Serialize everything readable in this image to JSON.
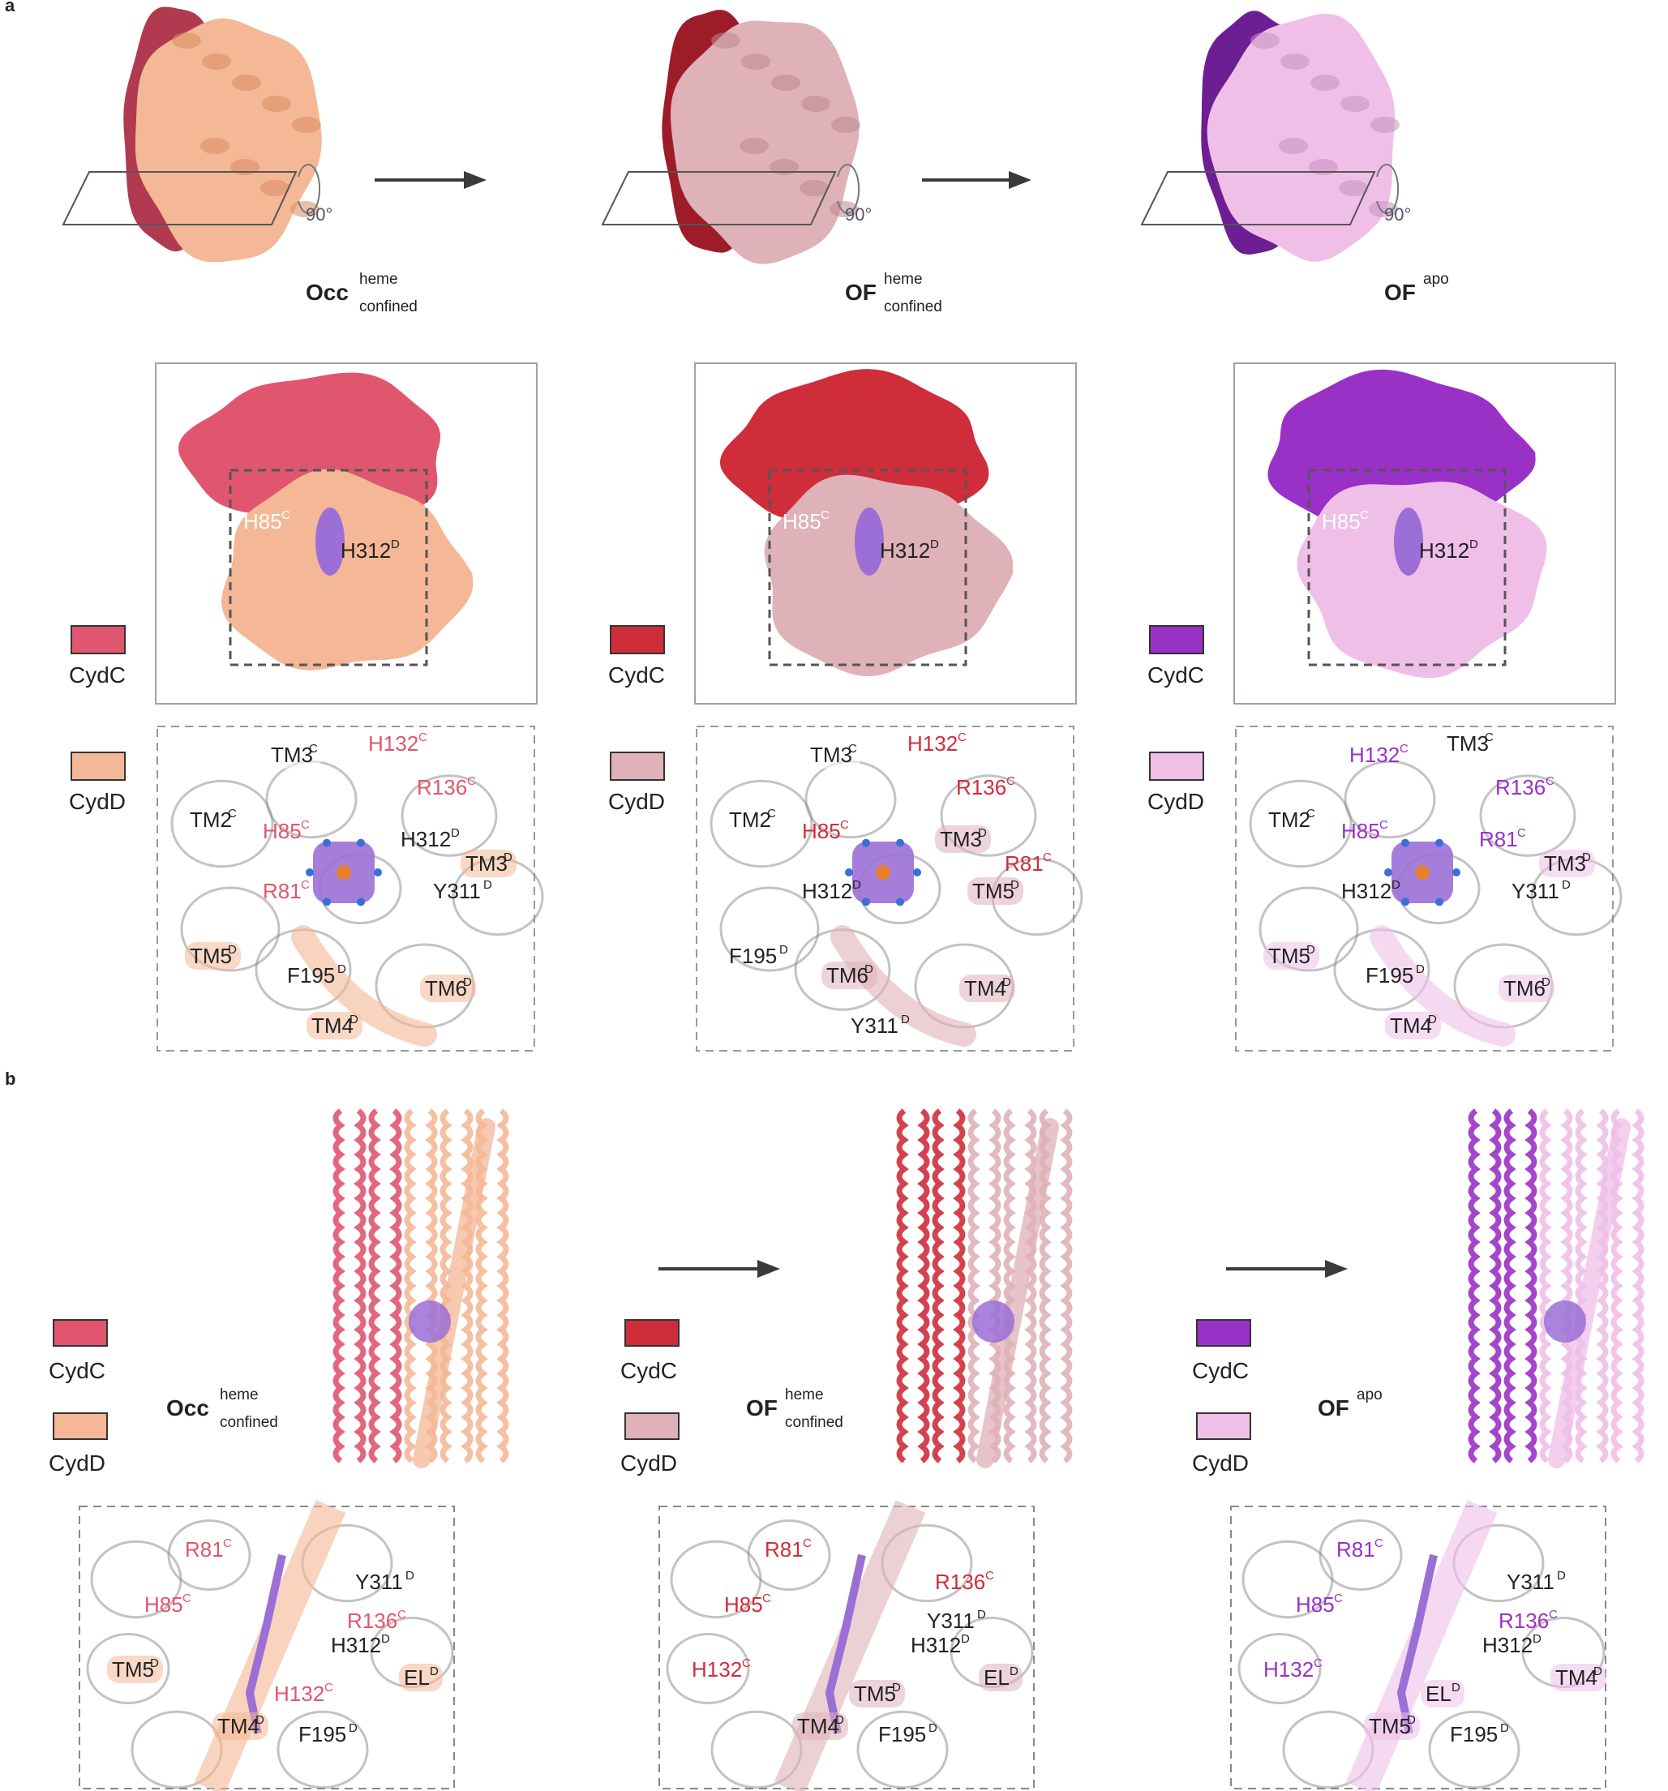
{
  "panel_a": {
    "label": "a",
    "rotation": "90°",
    "columns": [
      {
        "state_main": "Occ",
        "state_sup": "heme",
        "state_sub": "confined",
        "c_color": "#e0566e",
        "d_color": "#f4b896",
        "dark_c": "#b23a50",
        "dark_d": "#d98a62",
        "legend_c": "CydC",
        "legend_d": "CydD",
        "zoom_res_a": "H85",
        "zoom_sup_a": "C",
        "zoom_res_b": "H312",
        "zoom_sup_b": "D",
        "labels": [
          {
            "t": "TM3",
            "s": "C"
          },
          {
            "t": "H132",
            "s": "C"
          },
          {
            "t": "R136",
            "s": "C"
          },
          {
            "t": "TM2",
            "s": "C"
          },
          {
            "t": "H85",
            "s": "C"
          },
          {
            "t": "H312",
            "s": "D"
          },
          {
            "t": "TM3",
            "s": "D"
          },
          {
            "t": "R81",
            "s": "C"
          },
          {
            "t": "Y311",
            "s": "D"
          },
          {
            "t": "TM5",
            "s": "D"
          },
          {
            "t": "F195",
            "s": "D"
          },
          {
            "t": "TM6",
            "s": "D"
          },
          {
            "t": "TM4",
            "s": "D"
          }
        ]
      },
      {
        "state_main": "OF",
        "state_sup": "heme",
        "state_sub": "confined",
        "c_color": "#cf2d3a",
        "d_color": "#dfb1b8",
        "dark_c": "#9e1c28",
        "dark_d": "#b88890",
        "legend_c": "CydC",
        "legend_d": "CydD",
        "zoom_res_a": "H85",
        "zoom_sup_a": "C",
        "zoom_res_b": "H312",
        "zoom_sup_b": "D",
        "labels": [
          {
            "t": "TM3",
            "s": "C"
          },
          {
            "t": "H132",
            "s": "C"
          },
          {
            "t": "R136",
            "s": "C"
          },
          {
            "t": "TM2",
            "s": "C"
          },
          {
            "t": "H85",
            "s": "C"
          },
          {
            "t": "TM3",
            "s": "D"
          },
          {
            "t": "R81",
            "s": "C"
          },
          {
            "t": "H312",
            "s": "D"
          },
          {
            "t": "TM5",
            "s": "D"
          },
          {
            "t": "F195",
            "s": "D"
          },
          {
            "t": "TM6",
            "s": "D"
          },
          {
            "t": "TM4",
            "s": "D"
          },
          {
            "t": "Y311",
            "s": "D"
          }
        ]
      },
      {
        "state_main": "OF",
        "state_sup": "apo",
        "state_sub": "",
        "c_color": "#9a31c7",
        "d_color": "#efbfe8",
        "dark_c": "#6e1e93",
        "dark_d": "#c790c0",
        "legend_c": "CydC",
        "legend_d": "CydD",
        "zoom_res_a": "H85",
        "zoom_sup_a": "C",
        "zoom_res_b": "H312",
        "zoom_sup_b": "D",
        "labels": [
          {
            "t": "H132",
            "s": "C"
          },
          {
            "t": "TM3",
            "s": "C"
          },
          {
            "t": "R136",
            "s": "C"
          },
          {
            "t": "TM2",
            "s": "C"
          },
          {
            "t": "H85",
            "s": "C"
          },
          {
            "t": "R81",
            "s": "C"
          },
          {
            "t": "TM3",
            "s": "D"
          },
          {
            "t": "H312",
            "s": "D"
          },
          {
            "t": "Y311",
            "s": "D"
          },
          {
            "t": "TM5",
            "s": "D"
          },
          {
            "t": "F195",
            "s": "D"
          },
          {
            "t": "TM6",
            "s": "D"
          },
          {
            "t": "TM4",
            "s": "D"
          }
        ]
      }
    ]
  },
  "panel_b": {
    "label": "b",
    "columns": [
      {
        "state_main": "Occ",
        "state_sup": "heme",
        "state_sub": "confined",
        "legend_c": "CydC",
        "legend_d": "CydD",
        "labels": [
          {
            "t": "R81",
            "s": "C"
          },
          {
            "t": "Y311",
            "s": "D"
          },
          {
            "t": "H85",
            "s": "C"
          },
          {
            "t": "R136",
            "s": "C"
          },
          {
            "t": "H312",
            "s": "D"
          },
          {
            "t": "TM5",
            "s": "D"
          },
          {
            "t": "EL",
            "s": "D"
          },
          {
            "t": "H132",
            "s": "C"
          },
          {
            "t": "TM4",
            "s": "D"
          },
          {
            "t": "F195",
            "s": "D"
          }
        ]
      },
      {
        "state_main": "OF",
        "state_sup": "heme",
        "state_sub": "confined",
        "legend_c": "CydC",
        "legend_d": "CydD",
        "labels": [
          {
            "t": "R81",
            "s": "C"
          },
          {
            "t": "R136",
            "s": "C"
          },
          {
            "t": "H85",
            "s": "C"
          },
          {
            "t": "Y311",
            "s": "D"
          },
          {
            "t": "H312",
            "s": "D"
          },
          {
            "t": "H132",
            "s": "C"
          },
          {
            "t": "EL",
            "s": "D"
          },
          {
            "t": "TM5",
            "s": "D"
          },
          {
            "t": "TM4",
            "s": "D"
          },
          {
            "t": "F195",
            "s": "D"
          }
        ]
      },
      {
        "state_main": "OF",
        "state_sup": "apo",
        "state_sub": "",
        "legend_c": "CydC",
        "legend_d": "CydD",
        "labels": [
          {
            "t": "R81",
            "s": "C"
          },
          {
            "t": "Y311",
            "s": "D"
          },
          {
            "t": "H85",
            "s": "C"
          },
          {
            "t": "R136",
            "s": "C"
          },
          {
            "t": "H312",
            "s": "D"
          },
          {
            "t": "H132",
            "s": "C"
          },
          {
            "t": "TM4",
            "s": "D"
          },
          {
            "t": "EL",
            "s": "D"
          },
          {
            "t": "TM5",
            "s": "D"
          },
          {
            "t": "F195",
            "s": "D"
          }
        ]
      }
    ]
  },
  "colors": {
    "heme": "#9b6fd6",
    "iron": "#e8812c",
    "arrow": "#3a3a3a",
    "box": "#9aa5a3",
    "dash": "#555555",
    "nitrogen": "#3b6fd8",
    "oxygen": "#e0262c"
  }
}
